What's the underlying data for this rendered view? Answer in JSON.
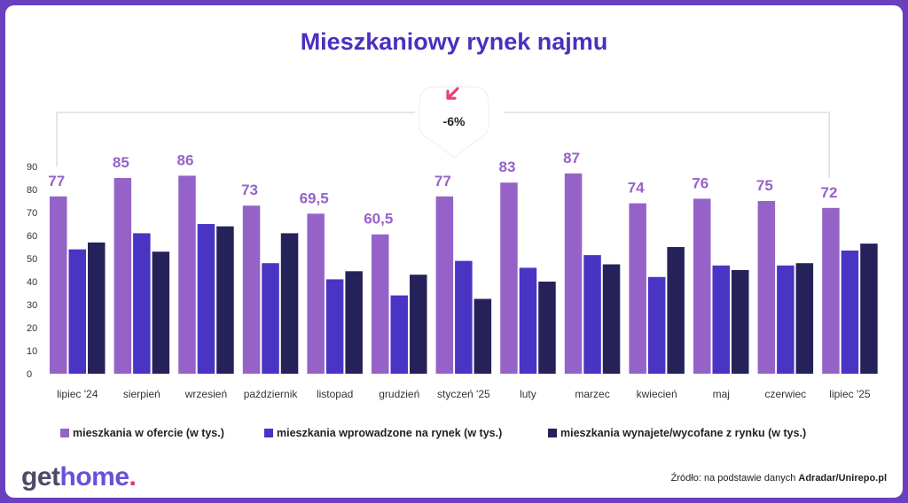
{
  "colors": {
    "frame": "#6a3fc0",
    "title": "#4b2fc0",
    "offer": "#9563c8",
    "introduced": "#4a34c4",
    "rented": "#25225a",
    "value_label": "#9563c8",
    "callout_arrow": "#e8407c"
  },
  "callout": {
    "text": "-6%",
    "icon": "arrow-down-left-icon"
  },
  "footer": {
    "source_prefix": "Źródło: na podstawie danych ",
    "source_bold": "Adradar/Unirepo.pl",
    "logo_get": "get",
    "logo_home": "home",
    "logo_dot": "."
  },
  "chart_data": {
    "type": "bar",
    "title": "Mieszkaniowy rynek najmu",
    "xlabel": "",
    "ylabel": "",
    "ylim": [
      0,
      90
    ],
    "yticks": [
      "0",
      "10",
      "20",
      "30",
      "40",
      "50",
      "60",
      "70",
      "80",
      "90"
    ],
    "grid": false,
    "legend_position": "bottom",
    "categories": [
      "lipiec '24",
      "sierpień",
      "wrzesień",
      "październik",
      "listopad",
      "grudzień",
      "styczeń '25",
      "luty",
      "marzec",
      "kwiecień",
      "maj",
      "czerwiec",
      "lipiec '25"
    ],
    "series": [
      {
        "name": "mieszkania w ofercie (w tys.)",
        "values": [
          77,
          85,
          86,
          73,
          69.5,
          60.5,
          77,
          83,
          87,
          74,
          76,
          75,
          72
        ],
        "labels": [
          "77",
          "85",
          "86",
          "73",
          "69,5",
          "60,5",
          "77",
          "83",
          "87",
          "74",
          "76",
          "75",
          "72"
        ]
      },
      {
        "name": "mieszkania wprowadzone na rynek (w tys.)",
        "values": [
          54,
          61,
          65,
          48,
          41,
          34,
          49,
          46,
          51.5,
          42,
          47,
          47,
          53.5
        ]
      },
      {
        "name": "mieszkania wynajete/wycofane z rynku (w tys.)",
        "values": [
          57,
          53,
          64,
          61,
          44.5,
          43,
          32.5,
          40,
          47.5,
          55,
          45,
          48,
          56.5
        ]
      }
    ]
  }
}
